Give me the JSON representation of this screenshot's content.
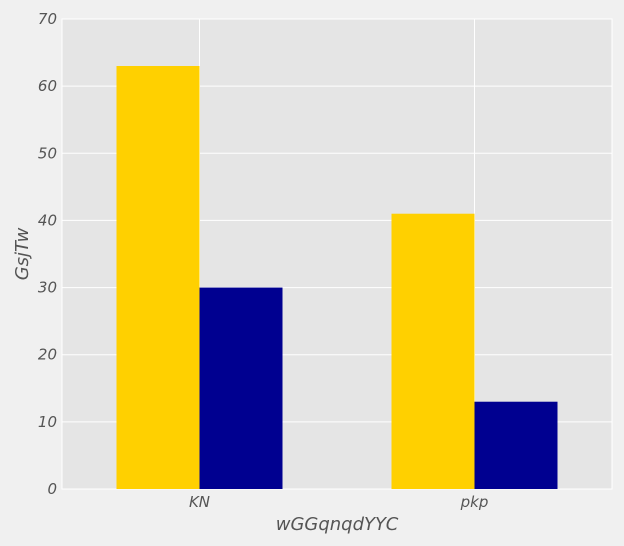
{
  "chart_data": {
    "type": "bar",
    "title": "",
    "xlabel": "wGGqnqdYYC",
    "ylabel": "GsjTw",
    "categories": [
      "KN",
      "pkp"
    ],
    "series": [
      {
        "values": [
          63,
          41
        ],
        "color": "#ffd000"
      },
      {
        "values": [
          30,
          13
        ],
        "color": "#000090"
      }
    ],
    "ylim": [
      0,
      70
    ],
    "yticks": [
      0,
      10,
      20,
      30,
      40,
      50,
      60,
      70
    ],
    "grid": true,
    "legend": "none",
    "style": {
      "plot_background": "#e5e5e5",
      "figure_background": "#f0f0f0",
      "grid_color": "#ffffff"
    }
  }
}
